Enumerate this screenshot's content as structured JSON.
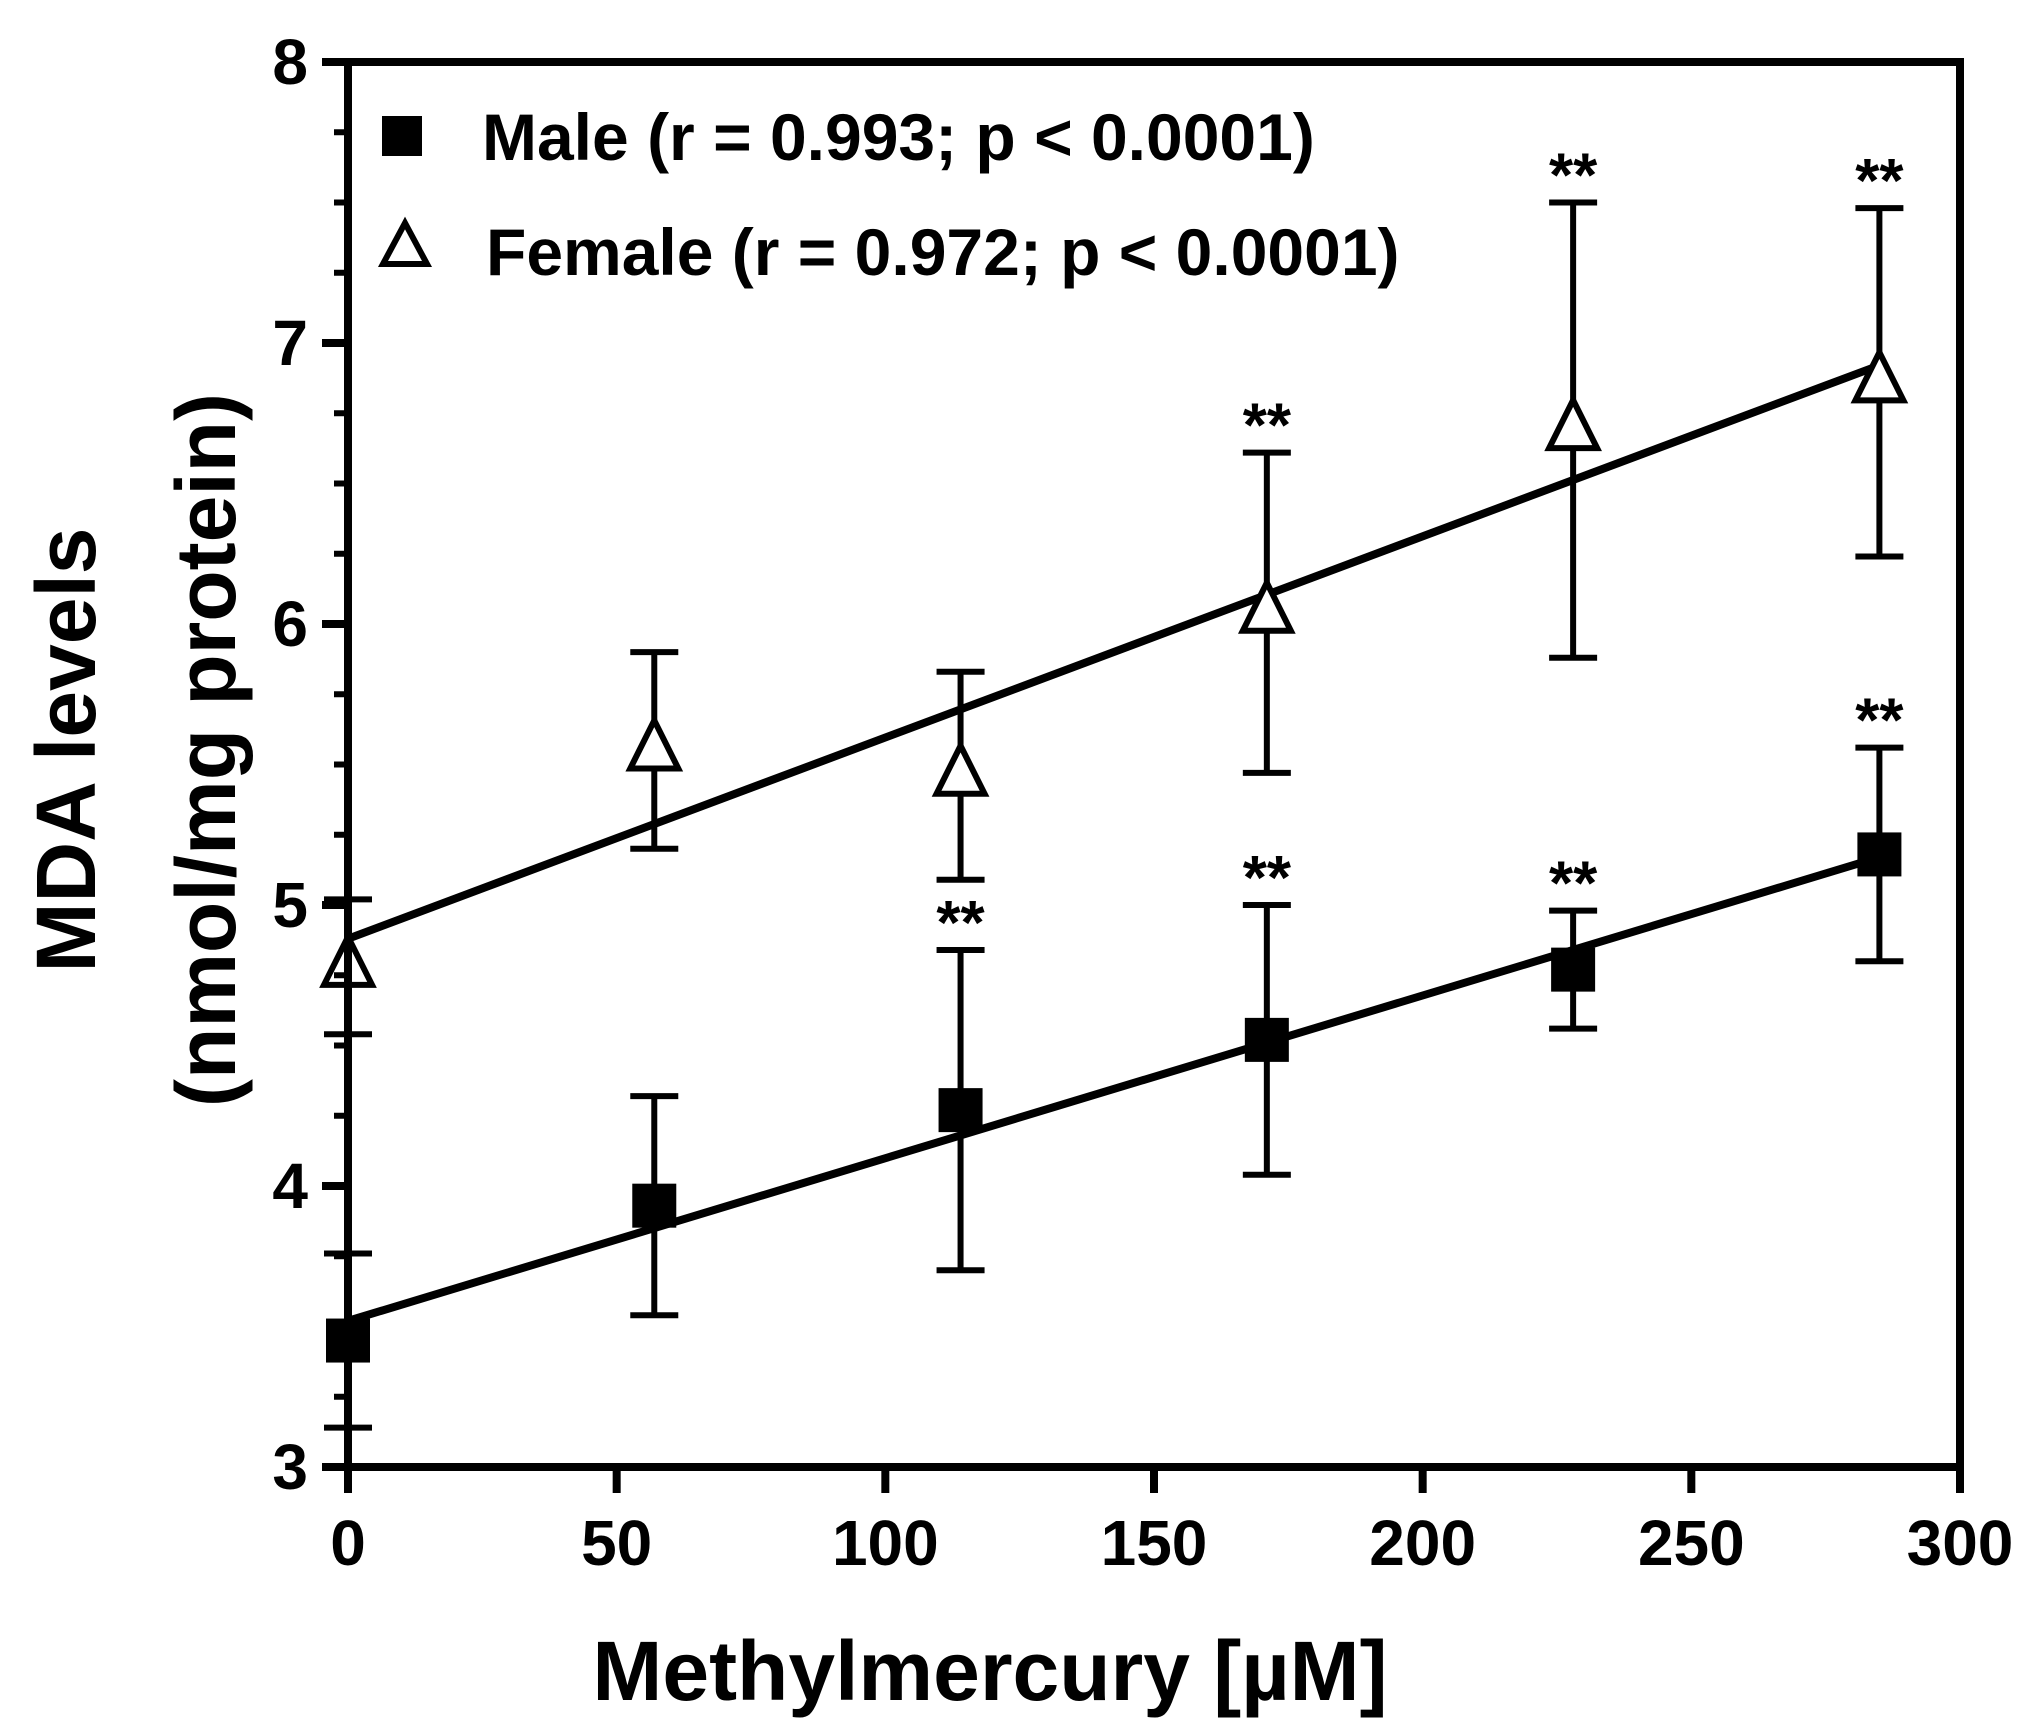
{
  "chart_data": {
    "type": "scatter",
    "title": "",
    "xlabel": "Methylmercury [µM]",
    "ylabel_line1": "MDA levels",
    "ylabel_line2": "(nmol/mg protein)",
    "xlim": [
      0,
      300
    ],
    "ylim": [
      3,
      8
    ],
    "xticks": [
      "0",
      "50",
      "100",
      "150",
      "200",
      "250",
      "300"
    ],
    "yticks": [
      "3",
      "4",
      "5",
      "6",
      "7",
      "8"
    ],
    "grid": false,
    "legend_position": "top-left",
    "significance_marker": "**",
    "series": [
      {
        "name": "Male (r = 0.993; p < 0.0001)",
        "marker": "filled-square",
        "x": [
          0,
          57,
          114,
          171,
          228,
          285
        ],
        "y": [
          3.45,
          3.93,
          4.27,
          4.52,
          4.77,
          5.18
        ],
        "error": [
          0.31,
          0.39,
          0.57,
          0.48,
          0.21,
          0.38
        ],
        "significant": [
          false,
          false,
          true,
          true,
          true,
          true
        ],
        "fit": {
          "intercept": 3.52,
          "slope": 0.00579
        }
      },
      {
        "name": "Female (r = 0.972; p < 0.0001)",
        "marker": "open-triangle",
        "x": [
          0,
          57,
          114,
          171,
          228,
          285
        ],
        "y": [
          4.78,
          5.55,
          5.46,
          6.04,
          6.69,
          6.86
        ],
        "error": [
          0.24,
          0.35,
          0.37,
          0.57,
          0.81,
          0.62
        ],
        "significant": [
          false,
          false,
          false,
          true,
          true,
          true
        ],
        "fit": {
          "intercept": 4.88,
          "slope": 0.00716
        }
      }
    ]
  }
}
